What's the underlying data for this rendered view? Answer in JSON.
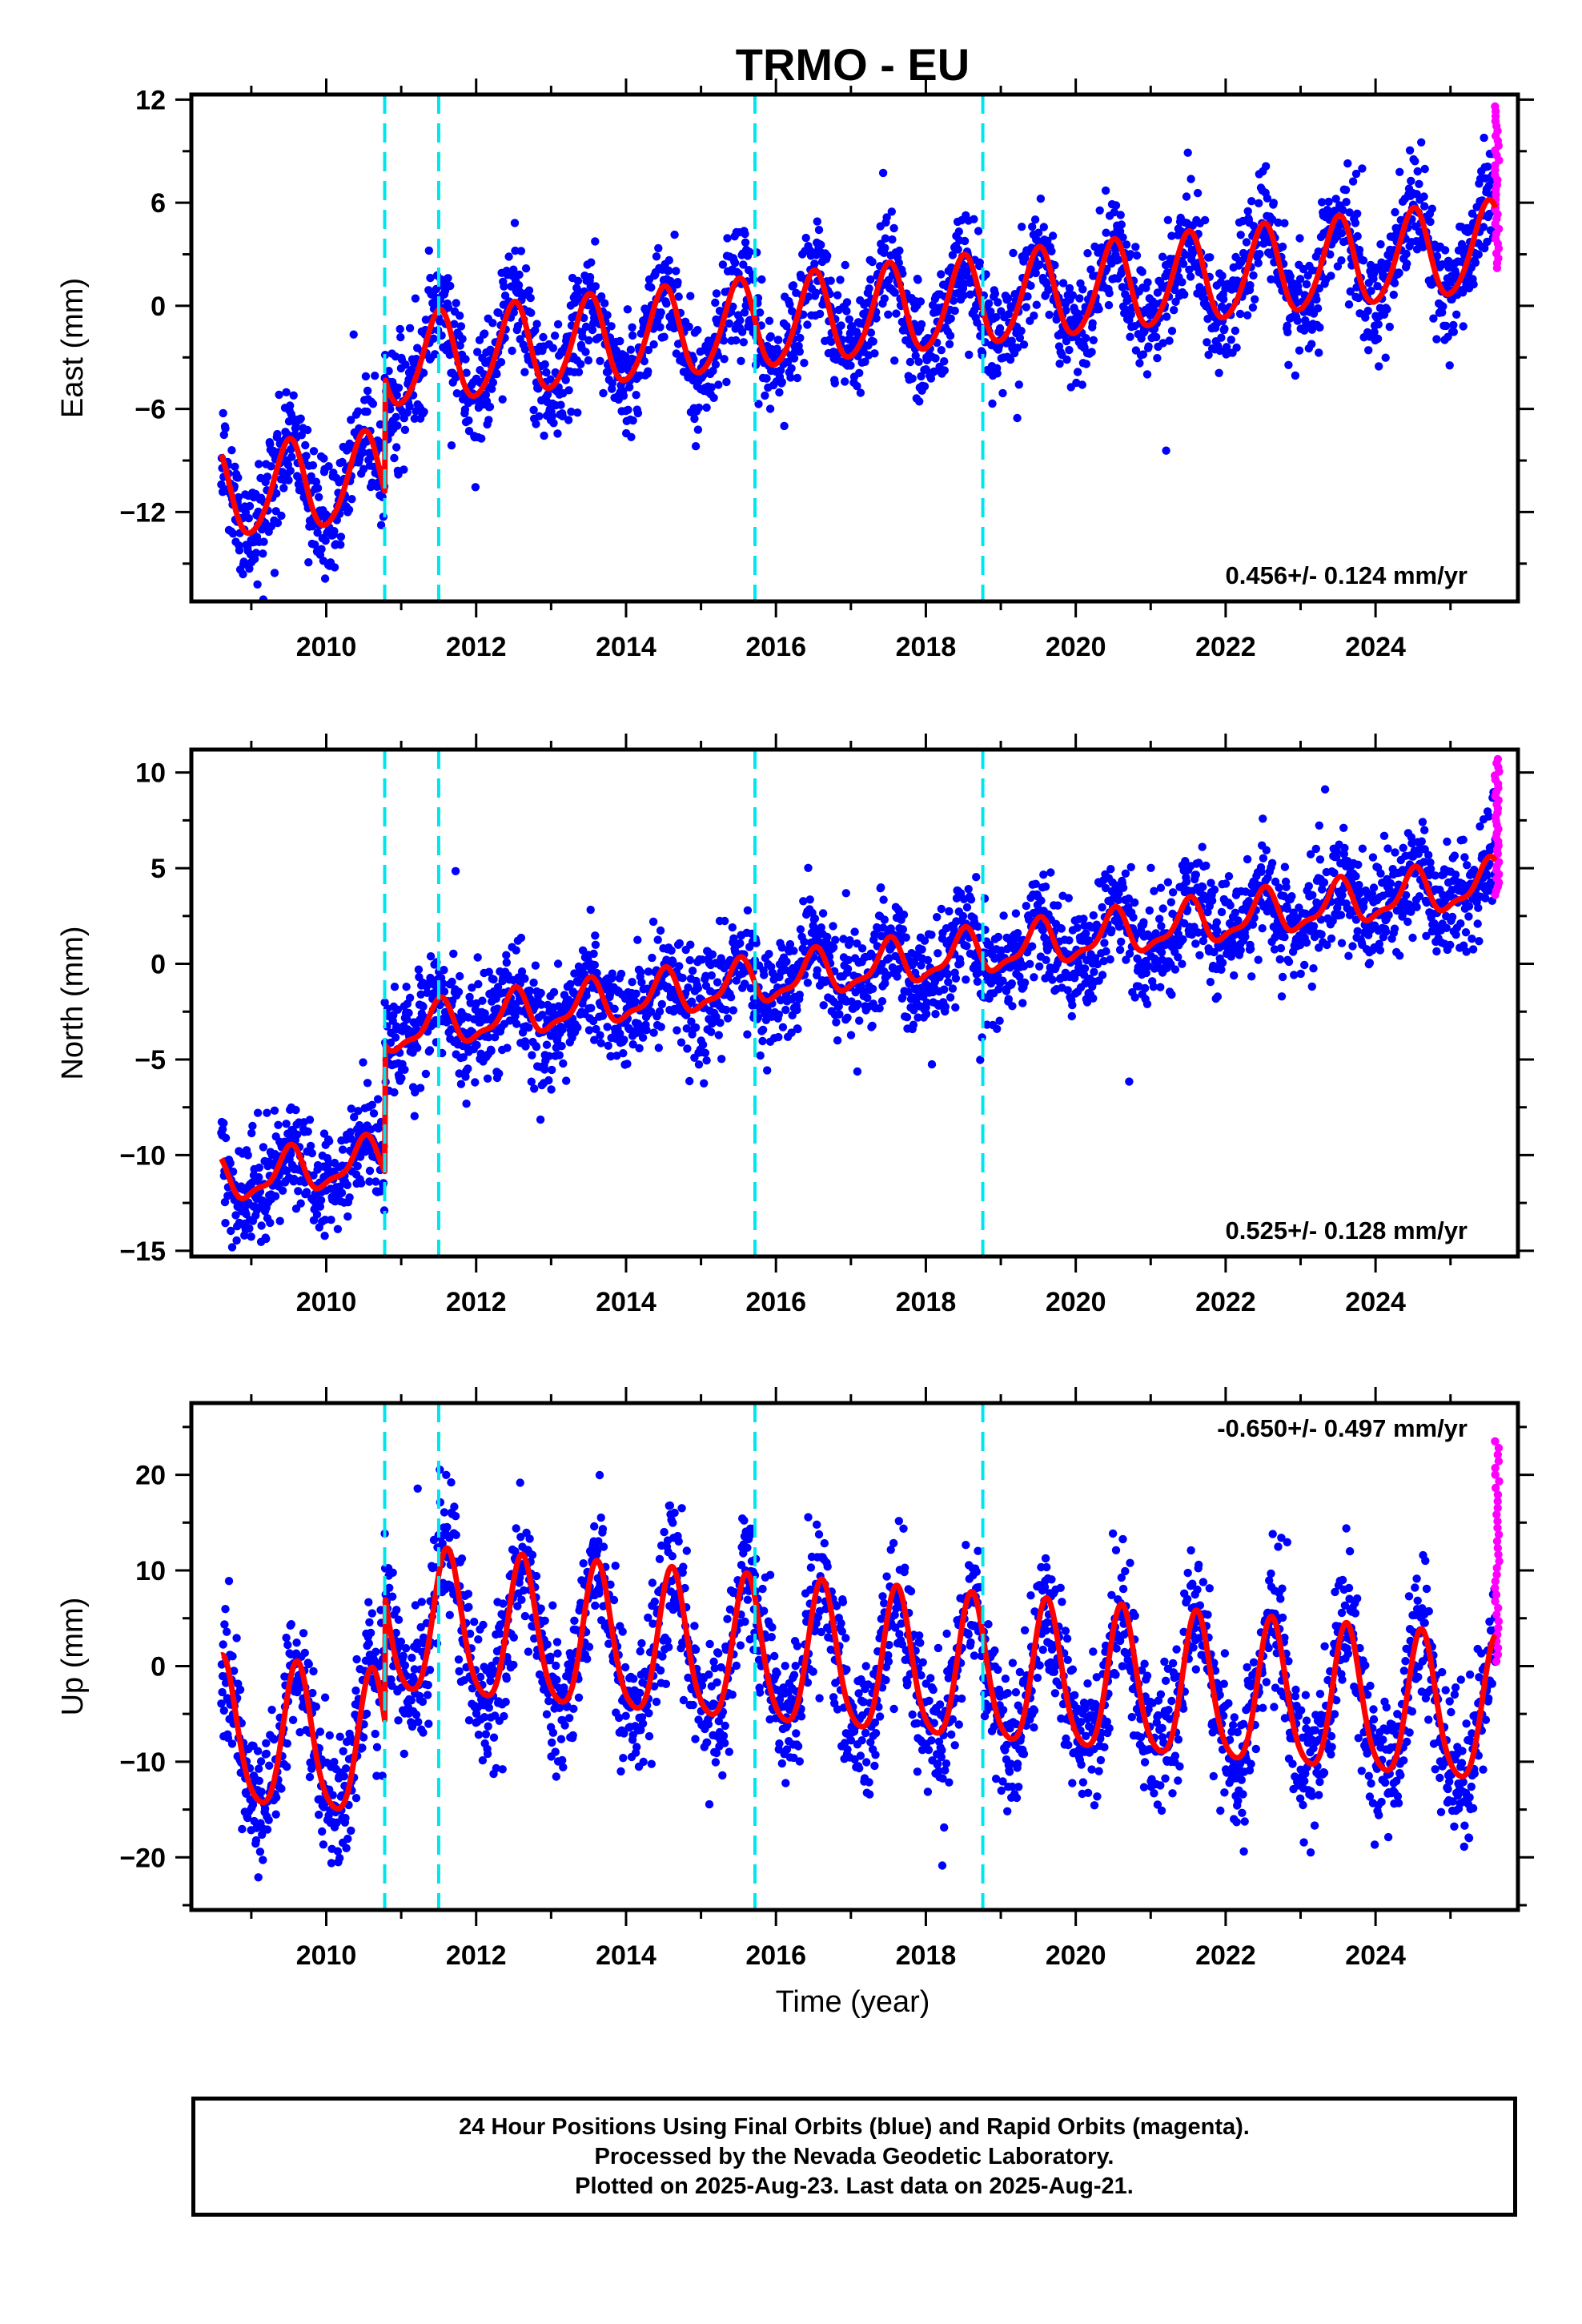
{
  "title": "TRMO - EU",
  "x_label": "Time (year)",
  "caption": [
    "24 Hour Positions Using Final Orbits (blue) and Rapid Orbits (magenta).",
    "Processed by the Nevada Geodetic Laboratory.",
    "Plotted on 2025-Aug-23. Last data on 2025-Aug-21."
  ],
  "colors": {
    "final_orbits": "#0000ff",
    "rapid_orbits": "#ff00ff",
    "model_fit": "#ff0000",
    "equipment_change": "#00e5ee"
  },
  "chart_data": [
    {
      "type": "scatter",
      "ylabel": "East (mm)",
      "x_ticks": [
        2010,
        2012,
        2014,
        2016,
        2018,
        2020,
        2022,
        2024
      ],
      "xlim": [
        2008.2,
        2025.9
      ],
      "y_ticks": [
        12,
        6,
        0,
        -6,
        -12
      ],
      "ylim": [
        -17.2,
        12.3
      ],
      "rate_annotation": "0.456+/- 0.124 mm/yr",
      "annotation_position": "bottom-right",
      "series": [
        {
          "name": "Final Orbits (blue)",
          "kind": "points"
        },
        {
          "name": "Rapid Orbits (magenta)",
          "kind": "points"
        },
        {
          "kind": "model-line"
        }
      ],
      "breaks": [
        2010.78,
        2011.5,
        2015.72,
        2018.76
      ],
      "model": {
        "start": 2008.6,
        "end": 2025.6,
        "segments": [
          {
            "from": 2008.6,
            "to": 2010.78,
            "offset": -11.0
          },
          {
            "from": 2010.78,
            "to": 2025.6,
            "offset": -3.4
          }
        ],
        "rate": 0.456,
        "annual_amp": 2.6,
        "annual_peak": 0.5,
        "semi_amp": 0.3,
        "semi_peak": 0.05,
        "scatter": 1.6
      },
      "rapid": {
        "from": 2025.59,
        "to": 2025.65,
        "min": 2.2,
        "max": 11.6
      }
    },
    {
      "type": "scatter",
      "ylabel": "North (mm)",
      "x_ticks": [
        2010,
        2012,
        2014,
        2016,
        2018,
        2020,
        2022,
        2024
      ],
      "xlim": [
        2008.2,
        2025.9
      ],
      "y_ticks": [
        10,
        5,
        0,
        -5,
        -10,
        -15
      ],
      "ylim": [
        -15.3,
        11.2
      ],
      "rate_annotation": "0.525+/- 0.128 mm/yr",
      "annotation_position": "bottom-right",
      "series": [
        {
          "name": "Final Orbits (blue)",
          "kind": "points"
        },
        {
          "name": "Rapid Orbits (magenta)",
          "kind": "points"
        },
        {
          "kind": "model-line"
        }
      ],
      "breaks": [
        2010.78,
        2011.5,
        2015.72,
        2018.76
      ],
      "model": {
        "start": 2008.6,
        "end": 2025.6,
        "segments": [
          {
            "from": 2008.6,
            "to": 2010.78,
            "offset": -11.4
          },
          {
            "from": 2010.78,
            "to": 2025.6,
            "offset": -3.6
          }
        ],
        "rate": 0.525,
        "annual_amp": 1.1,
        "annual_peak": 0.5,
        "semi_amp": 0.4,
        "semi_peak": 0.05,
        "scatter": 1.4
      },
      "rapid": {
        "from": 2025.59,
        "to": 2025.65,
        "min": 3.6,
        "max": 10.7
      }
    },
    {
      "type": "scatter",
      "ylabel": "Up (mm)",
      "x_ticks": [
        2010,
        2012,
        2014,
        2016,
        2018,
        2020,
        2022,
        2024
      ],
      "xlim": [
        2008.2,
        2025.9
      ],
      "y_ticks": [
        20,
        10,
        0,
        -10,
        -20
      ],
      "ylim": [
        -25.5,
        27.5
      ],
      "rate_annotation": "-0.650+/- 0.497 mm/yr",
      "annotation_position": "top-right",
      "series": [
        {
          "name": "Final Orbits (blue)",
          "kind": "points"
        },
        {
          "name": "Rapid Orbits (magenta)",
          "kind": "points"
        },
        {
          "kind": "model-line"
        }
      ],
      "breaks": [
        2010.78,
        2011.5,
        2015.72,
        2018.76
      ],
      "model": {
        "start": 2008.6,
        "end": 2025.6,
        "segments": [
          {
            "from": 2008.6,
            "to": 2010.78,
            "offset": -7.5
          },
          {
            "from": 2010.78,
            "to": 2025.6,
            "offset": 4.2
          }
        ],
        "rate": -0.65,
        "annual_amp": 7.5,
        "annual_peak": 0.62,
        "semi_amp": 1.2,
        "semi_peak": 0.1,
        "scatter": 3.6
      },
      "rapid": {
        "from": 2025.59,
        "to": 2025.65,
        "min": 0.5,
        "max": 23.5
      }
    }
  ]
}
